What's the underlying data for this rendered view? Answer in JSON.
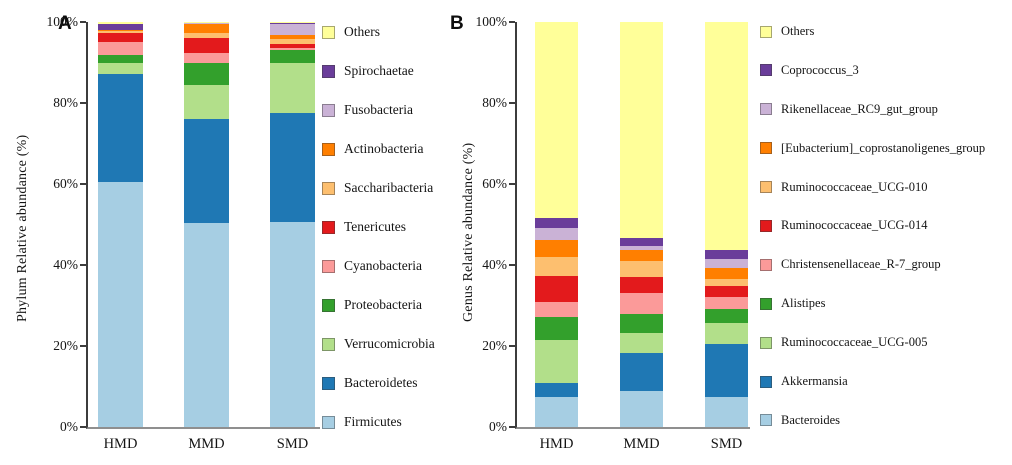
{
  "chart_data": [
    {
      "type": "bar",
      "stacked": true,
      "panel_letter": "A",
      "title": "",
      "xlabel": "",
      "ylabel": "Phylum Relative abundance (%)",
      "ylim": [
        0,
        100
      ],
      "grid": false,
      "legend_position": "right",
      "legend_order": "top series first (Others) down to bottom series (Firmicutes)",
      "y_ticks": [
        {
          "value": 0,
          "label": "0%"
        },
        {
          "value": 20,
          "label": "20%"
        },
        {
          "value": 40,
          "label": "40%"
        },
        {
          "value": 60,
          "label": "60%"
        },
        {
          "value": 80,
          "label": "80%"
        },
        {
          "value": 100,
          "label": "100%"
        }
      ],
      "categories": [
        "HMD",
        "MMD",
        "SMD"
      ],
      "series": [
        {
          "name": "Firmicutes",
          "color": "#A6CEE3",
          "values": [
            60.5,
            50.3,
            50.5
          ]
        },
        {
          "name": "Bacteroidetes",
          "color": "#1F78B4",
          "values": [
            26.7,
            25.7,
            27.1
          ]
        },
        {
          "name": "Verrucomicrobia",
          "color": "#B2DF8A",
          "values": [
            2.6,
            8.5,
            12.2
          ]
        },
        {
          "name": "Proteobacteria",
          "color": "#33A02C",
          "values": [
            2.0,
            5.3,
            3.2
          ]
        },
        {
          "name": "Cyanobacteria",
          "color": "#FB9A99",
          "values": [
            3.2,
            2.5,
            0.5
          ]
        },
        {
          "name": "Tenericutes",
          "color": "#E31A1C",
          "values": [
            2.3,
            3.7,
            1.2
          ]
        },
        {
          "name": "Saccharibacteria",
          "color": "#FDBF6F",
          "values": [
            0.5,
            1.2,
            1.1
          ]
        },
        {
          "name": "Actinobacteria",
          "color": "#FF7F00",
          "values": [
            0.2,
            2.4,
            1.1
          ]
        },
        {
          "name": "Fusobacteria",
          "color": "#CAB2D6",
          "values": [
            0.1,
            0.1,
            2.7
          ]
        },
        {
          "name": "Spirochaetae",
          "color": "#6A3D9A",
          "values": [
            1.4,
            0.1,
            0.1
          ]
        },
        {
          "name": "Others",
          "color": "#FFFF99",
          "values": [
            0.5,
            0.2,
            0.3
          ]
        }
      ]
    },
    {
      "type": "bar",
      "stacked": true,
      "panel_letter": "B",
      "title": "",
      "xlabel": "",
      "ylabel": "Genus Relative abundance (%)",
      "ylim": [
        0,
        100
      ],
      "grid": false,
      "legend_position": "right",
      "legend_order": "top series first (Others) down to bottom series (Bacteroides)",
      "y_ticks": [
        {
          "value": 0,
          "label": "0%"
        },
        {
          "value": 20,
          "label": "20%"
        },
        {
          "value": 40,
          "label": "40%"
        },
        {
          "value": 60,
          "label": "60%"
        },
        {
          "value": 80,
          "label": "80%"
        },
        {
          "value": 100,
          "label": "100%"
        }
      ],
      "categories": [
        "HMD",
        "MMD",
        "SMD"
      ],
      "series": [
        {
          "name": "Bacteroides",
          "color": "#A6CEE3",
          "values": [
            7.5,
            9.0,
            7.5
          ]
        },
        {
          "name": "Akkermansia",
          "color": "#1F78B4",
          "values": [
            3.3,
            9.3,
            13.1
          ]
        },
        {
          "name": "Ruminococcaceae_UCG-005",
          "color": "#B2DF8A",
          "values": [
            10.6,
            4.8,
            5.2
          ]
        },
        {
          "name": "Alistipes",
          "color": "#33A02C",
          "values": [
            5.7,
            4.9,
            3.4
          ]
        },
        {
          "name": "Christensenellaceae_R-7_group",
          "color": "#FB9A99",
          "values": [
            3.7,
            5.1,
            2.9
          ]
        },
        {
          "name": "Ruminococcaceae_UCG-014",
          "color": "#E31A1C",
          "values": [
            6.5,
            3.9,
            2.7
          ]
        },
        {
          "name": "Ruminococcaceae_UCG-010",
          "color": "#FDBF6F",
          "values": [
            4.8,
            4.1,
            1.8
          ]
        },
        {
          "name": "[Eubacterium]_coprostanoligenes_group",
          "color": "#FF7F00",
          "values": [
            4.2,
            2.7,
            2.6
          ]
        },
        {
          "name": "Rikenellaceae_RC9_gut_group",
          "color": "#CAB2D6",
          "values": [
            2.9,
            1.0,
            2.3
          ]
        },
        {
          "name": "Coprococcus_3",
          "color": "#6A3D9A",
          "values": [
            2.3,
            1.9,
            2.3
          ]
        },
        {
          "name": "Others",
          "color": "#FFFF99",
          "values": [
            48.5,
            53.3,
            56.2
          ]
        }
      ]
    }
  ]
}
